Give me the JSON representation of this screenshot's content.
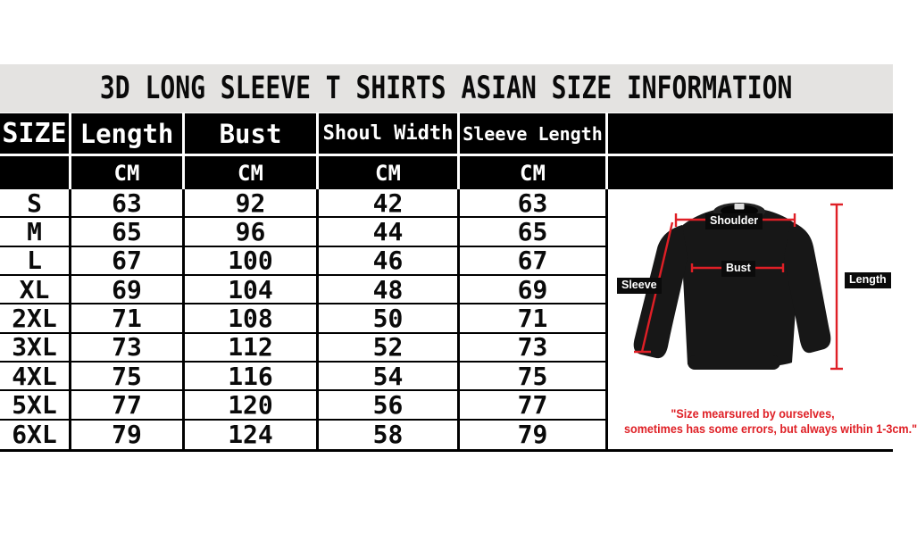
{
  "title": "3D LONG SLEEVE T SHIRTS ASIAN SIZE INFORMATION",
  "table": {
    "columns": [
      "SIZE",
      "Length",
      "Bust",
      "Shoul Width",
      "Sleeve Length"
    ],
    "unit_row": [
      "",
      "CM",
      "CM",
      "CM",
      "CM"
    ],
    "rows": [
      [
        "S",
        "63",
        "92",
        "42",
        "63"
      ],
      [
        "M",
        "65",
        "96",
        "44",
        "65"
      ],
      [
        "L",
        "67",
        "100",
        "46",
        "67"
      ],
      [
        "XL",
        "69",
        "104",
        "48",
        "69"
      ],
      [
        "2XL",
        "71",
        "108",
        "50",
        "71"
      ],
      [
        "3XL",
        "73",
        "112",
        "52",
        "73"
      ],
      [
        "4XL",
        "75",
        "116",
        "54",
        "75"
      ],
      [
        "5XL",
        "77",
        "120",
        "56",
        "77"
      ],
      [
        "6XL",
        "79",
        "124",
        "58",
        "79"
      ]
    ]
  },
  "diagram": {
    "shoulder_label": "Shoulder",
    "bust_label": "Bust",
    "sleeve_label": "Sleeve",
    "length_label": "Length",
    "note_line1": "\"Size mearsured by ourselves,",
    "note_line2": "sometimes has some errors, but always within 1-3cm.\""
  },
  "colors": {
    "band_gray": "#e4e3e1",
    "measure_red": "#df1f26",
    "header_black": "#000000",
    "garment_black": "#171717"
  }
}
